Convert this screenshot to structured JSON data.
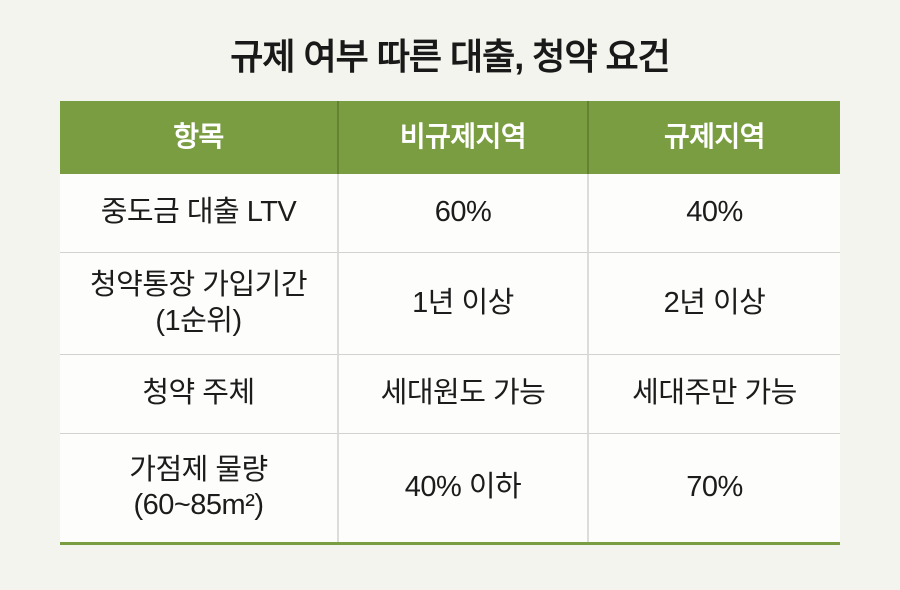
{
  "title": "규제 여부 따른 대출, 청약 요건",
  "colors": {
    "background": "#f3f4ed",
    "header_green": "#7a9d42",
    "header_divider": "#648232",
    "header_text": "#ffffff",
    "body_text": "#1c1c1c",
    "cell_background": "#fdfdfb",
    "grid_line": "#d2d2ce",
    "bottom_rule": "#7a9d42"
  },
  "table": {
    "columns": {
      "item": "항목",
      "non_regulated": "비규제지역",
      "regulated": "규제지역"
    },
    "rows": [
      {
        "item": "중도금 대출 LTV",
        "item_sub": "",
        "non_regulated": "60%",
        "regulated": "40%"
      },
      {
        "item": "청약통장 가입기간",
        "item_sub": "(1순위)",
        "non_regulated": "1년 이상",
        "regulated": "2년 이상"
      },
      {
        "item": "청약 주체",
        "item_sub": "",
        "non_regulated": "세대원도 가능",
        "regulated": "세대주만 가능"
      },
      {
        "item": "가점제 물량",
        "item_sub": "(60~85m²)",
        "non_regulated": "40% 이하",
        "regulated": "70%"
      }
    ]
  }
}
